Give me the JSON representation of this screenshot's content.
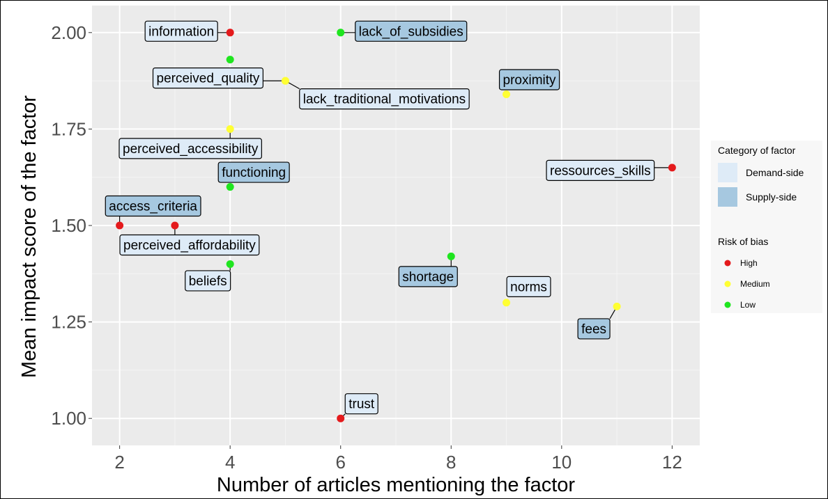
{
  "chart_data": {
    "type": "scatter",
    "xlabel": "Number of articles mentioning the factor",
    "ylabel": "Mean impact score of the factor",
    "xlim": [
      1.5,
      12.5
    ],
    "ylim": [
      0.93,
      2.07
    ],
    "xticks": [
      2,
      4,
      6,
      8,
      10,
      12
    ],
    "xtick_labels": [
      "2",
      "4",
      "6",
      "8",
      "10",
      "12"
    ],
    "yticks": [
      1.0,
      1.25,
      1.5,
      1.75,
      2.0
    ],
    "ytick_labels": [
      "1.00",
      "1.25",
      "1.50",
      "1.75",
      "2.00"
    ],
    "grid": true,
    "legend_position": "right",
    "fill_legend": {
      "title": "Category of factor",
      "entries": [
        {
          "label": "Demand-side",
          "color": "#deebf7"
        },
        {
          "label": "Supply-side",
          "color": "#a6c8e0"
        }
      ]
    },
    "color_legend": {
      "title": "Risk of bias",
      "entries": [
        {
          "label": "High",
          "color": "#e41a1c"
        },
        {
          "label": "Medium",
          "color": "#ffff33"
        },
        {
          "label": "Low",
          "color": "#1fe51f"
        }
      ]
    },
    "points": [
      {
        "label": "information",
        "x": 4,
        "y": 2.0,
        "risk": "High",
        "category": "Demand-side"
      },
      {
        "label": "lack_of_subsidies",
        "x": 6,
        "y": 2.0,
        "risk": "Low",
        "category": "Supply-side"
      },
      {
        "label": "perceived_quality",
        "x": 5,
        "y": 1.875,
        "risk": "Medium",
        "category": "Demand-side"
      },
      {
        "label": "",
        "x": 4,
        "y": 1.93,
        "risk": "Low",
        "category": "Demand-side"
      },
      {
        "label": "lack_traditional_motivations",
        "x": 5,
        "y": 1.875,
        "risk": "Medium",
        "category": "Demand-side"
      },
      {
        "label": "proximity",
        "x": 9,
        "y": 1.84,
        "risk": "Medium",
        "category": "Supply-side"
      },
      {
        "label": "perceived_accessibility",
        "x": 4,
        "y": 1.75,
        "risk": "Medium",
        "category": "Demand-side"
      },
      {
        "label": "ressources_skills",
        "x": 12,
        "y": 1.65,
        "risk": "High",
        "category": "Demand-side"
      },
      {
        "label": "functioning",
        "x": 4,
        "y": 1.6,
        "risk": "Low",
        "category": "Supply-side"
      },
      {
        "label": "access_criteria",
        "x": 2,
        "y": 1.5,
        "risk": "High",
        "category": "Supply-side"
      },
      {
        "label": "perceived_affordability",
        "x": 3,
        "y": 1.5,
        "risk": "High",
        "category": "Demand-side"
      },
      {
        "label": "shortage",
        "x": 8,
        "y": 1.42,
        "risk": "Low",
        "category": "Supply-side"
      },
      {
        "label": "beliefs",
        "x": 4,
        "y": 1.4,
        "risk": "Low",
        "category": "Demand-side"
      },
      {
        "label": "norms",
        "x": 9,
        "y": 1.3,
        "risk": "Medium",
        "category": "Demand-side"
      },
      {
        "label": "fees",
        "x": 11,
        "y": 1.29,
        "risk": "Medium",
        "category": "Supply-side"
      },
      {
        "label": "trust",
        "x": 6,
        "y": 1.0,
        "risk": "High",
        "category": "Demand-side"
      }
    ]
  }
}
